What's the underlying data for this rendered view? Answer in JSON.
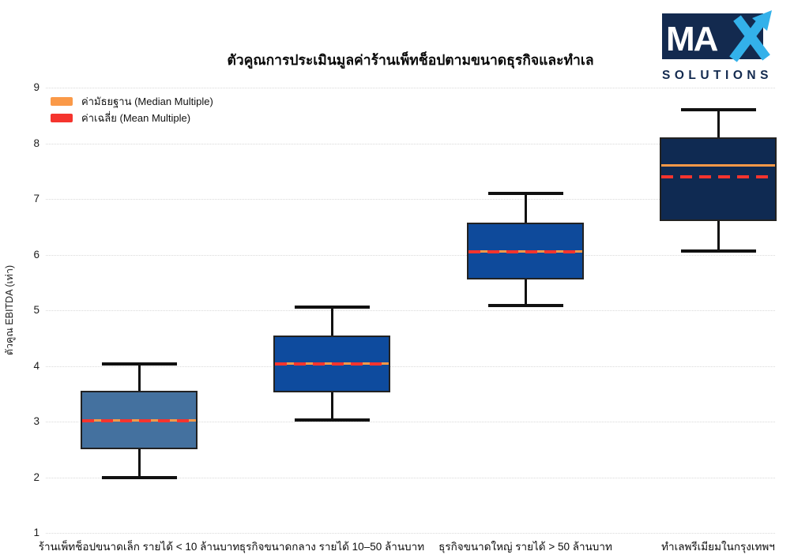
{
  "page": {
    "background": "#ffffff",
    "title": "ตัวคูณการประเมินมูลค่าร้านเพ็ทช็อปตามขนาดธุรกิจและทำเล"
  },
  "logo": {
    "text_ma": "MA",
    "text_x": "X",
    "text_sub": "SOLUTIONS",
    "navy": "#132A4F",
    "cyan": "#33B1EA",
    "white": "#ffffff"
  },
  "legend": [
    {
      "label": "ค่ามัธยฐาน (Median Multiple)",
      "color": "#FA9948"
    },
    {
      "label": "ค่าเฉลี่ย (Mean Multiple)",
      "color": "#F5342E"
    }
  ],
  "chart_data": {
    "type": "boxplot",
    "title": "ตัวคูณการประเมินมูลค่าร้านเพ็ทช็อปตามขนาดธุรกิจและทำเล",
    "xlabel": "",
    "ylabel": "ตัวคูณ EBITDA (เท่า)",
    "ylim": [
      1,
      9
    ],
    "yticks": [
      1,
      2,
      3,
      4,
      5,
      6,
      7,
      8,
      9
    ],
    "grid": true,
    "legend_position": "top-left",
    "median_color": "#FA9948",
    "mean_color": "#F5342E",
    "whisker_color": "#111111",
    "categories": [
      "ร้านเพ็ทช็อปขนาดเล็ก รายได้ < 10 ล้านบาท",
      "ธุรกิจขนาดกลาง รายได้ 10–50 ล้านบาท",
      "ธุรกิจขนาดใหญ่ รายได้ > 50 ล้านบาท",
      "ทำเลพรีเมียมในกรุงเทพฯ"
    ],
    "series": [
      {
        "category": "ร้านเพ็ทช็อปขนาดเล็ก รายได้ < 10 ล้านบาท",
        "min": 2.0,
        "q1": 2.5,
        "median": 3.02,
        "mean": 3.02,
        "q3": 3.55,
        "max": 4.03,
        "fill": "#44719F"
      },
      {
        "category": "ธุรกิจขนาดกลาง รายได้ 10–50 ล้านบาท",
        "min": 3.03,
        "q1": 3.53,
        "median": 4.04,
        "mean": 4.04,
        "q3": 4.55,
        "max": 5.06,
        "fill": "#0E4B9E"
      },
      {
        "category": "ธุรกิจขนาดใหญ่ รายได้ > 50 ล้านบาท",
        "min": 5.08,
        "q1": 5.55,
        "median": 6.05,
        "mean": 6.05,
        "q3": 6.57,
        "max": 7.1,
        "fill": "#0E4A9B"
      },
      {
        "category": "ทำเลพรีเมียมในกรุงเทพฯ",
        "min": 6.06,
        "q1": 6.6,
        "median": 7.6,
        "mean": 7.4,
        "q3": 8.1,
        "max": 8.6,
        "fill": "#0F2A52"
      }
    ]
  }
}
